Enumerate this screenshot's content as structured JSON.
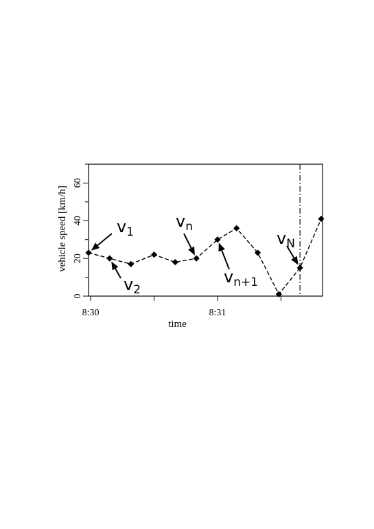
{
  "chart_data": {
    "type": "line",
    "xlabel": "time",
    "ylabel": "vehicle speed [km/h]",
    "x_tick_labels": [
      "8:30",
      "8:31"
    ],
    "y_ticks": [
      0,
      20,
      40,
      60
    ],
    "ylim": [
      0,
      70
    ],
    "grid": false,
    "line_style": "dashed",
    "marker": "diamond",
    "series": [
      {
        "x": [
          "8:29:59",
          "8:30:09",
          "8:30:19",
          "8:30:30",
          "8:30:40",
          "8:30:50",
          "8:31:00",
          "8:31:09",
          "8:31:19",
          "8:31:29",
          "8:31:39",
          "8:31:49"
        ],
        "values": [
          23,
          20,
          17,
          22,
          18,
          20,
          30,
          36,
          23,
          1,
          15,
          41
        ]
      }
    ],
    "annotations": [
      {
        "base": "v",
        "sub": "1",
        "point_index": 0
      },
      {
        "base": "v",
        "sub": "2",
        "point_index": 1
      },
      {
        "base": "v",
        "sub": "n",
        "point_index": 5
      },
      {
        "base": "v",
        "sub": "n+1",
        "point_index": 6
      },
      {
        "base": "v",
        "sub": "N",
        "point_index": 10
      }
    ],
    "vertical_line": {
      "at_point_index": 10,
      "style": "dash-dot"
    }
  },
  "colors": {
    "ink": "#000000",
    "background": "#ffffff"
  }
}
